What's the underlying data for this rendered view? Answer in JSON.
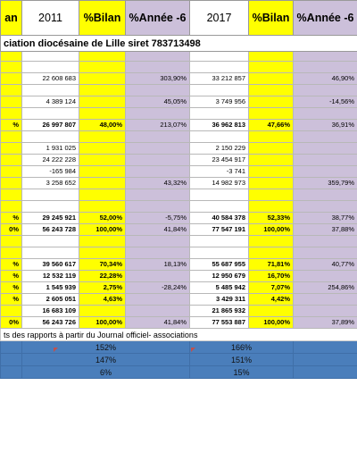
{
  "header": {
    "bilan_a": "an",
    "year_2011": "2011",
    "bilan_b": "%Bilan",
    "annee_b": "%Année -6",
    "year_2017": "2017",
    "bilan_c": "%Bilan",
    "annee_c": "%Année -6"
  },
  "org_title": "ciation diocésaine de Lille siret 783713498",
  "rows": [
    {
      "a": "",
      "b": "",
      "c": "",
      "d": "",
      "e": "",
      "f": "",
      "g": ""
    },
    {
      "a": "",
      "b": "22 608 683",
      "c": "",
      "d": "303,90%",
      "e": "33 212 857",
      "f": "",
      "g": "46,90%"
    },
    {
      "a": "",
      "b": "",
      "c": "",
      "d": "",
      "e": "",
      "f": "",
      "g": ""
    },
    {
      "a": "",
      "b": "4 389 124",
      "c": "",
      "d": "45,05%",
      "e": "3 749 956",
      "f": "",
      "g": "-14,56%"
    },
    {
      "a": "",
      "b": "",
      "c": "",
      "d": "",
      "e": "",
      "f": "",
      "g": ""
    },
    {
      "a": "%",
      "b": "26 997 807",
      "c": "48,00%",
      "d": "213,07%",
      "e": "36 962 813",
      "f": "47,66%",
      "g": "36,91%"
    },
    {
      "a": "",
      "b": "",
      "c": "",
      "d": "",
      "e": "",
      "f": "",
      "g": ""
    },
    {
      "a": "",
      "b": "1 931 025",
      "c": "",
      "d": "",
      "e": "2 150 229",
      "f": "",
      "g": ""
    },
    {
      "a": "",
      "b": "24 222 228",
      "c": "",
      "d": "",
      "e": "23 454 917",
      "f": "",
      "g": ""
    },
    {
      "a": "",
      "b": "-165 984",
      "c": "",
      "d": "",
      "e": "-3 741",
      "f": "",
      "g": ""
    },
    {
      "a": "",
      "b": "3 258 652",
      "c": "",
      "d": "43,32%",
      "e": "14 982 973",
      "f": "",
      "g": "359,79%"
    },
    {
      "a": "",
      "b": "",
      "c": "",
      "d": "",
      "e": "",
      "f": "",
      "g": ""
    },
    {
      "a": "",
      "b": "",
      "c": "",
      "d": "",
      "e": "",
      "f": "",
      "g": ""
    },
    {
      "a": "%",
      "b": "29 245 921",
      "c": "52,00%",
      "d": "-5,75%",
      "e": "40 584 378",
      "f": "52,33%",
      "g": "38,77%"
    },
    {
      "a": "0%",
      "b": "56 243 728",
      "c": "100,00%",
      "d": "41,84%",
      "e": "77 547 191",
      "f": "100,00%",
      "g": "37,88%"
    },
    {
      "a": "",
      "b": "",
      "c": "",
      "d": "",
      "e": "",
      "f": "",
      "g": ""
    },
    {
      "a": "",
      "b": "",
      "c": "",
      "d": "",
      "e": "",
      "f": "",
      "g": ""
    },
    {
      "a": "%",
      "b": "39 560 617",
      "c": "70,34%",
      "d": "18,13%",
      "e": "55 687 955",
      "f": "71,81%",
      "g": "40,77%"
    },
    {
      "a": "%",
      "b": "12 532 119",
      "c": "22,28%",
      "d": "",
      "e": "12 950 679",
      "f": "16,70%",
      "g": ""
    },
    {
      "a": "%",
      "b": "1 545 939",
      "c": "2,75%",
      "d": "-28,24%",
      "e": "5 485 942",
      "f": "7,07%",
      "g": "254,86%"
    },
    {
      "a": "%",
      "b": "2 605 051",
      "c": "4,63%",
      "d": "",
      "e": "3 429 311",
      "f": "4,42%",
      "g": ""
    },
    {
      "a": "",
      "b": "16 683 109",
      "c": "",
      "d": "",
      "e": "21 865 932",
      "f": "",
      "g": ""
    },
    {
      "a": "0%",
      "b": "56 243 726",
      "c": "100,00%",
      "d": "41,84%",
      "e": "77 553 887",
      "f": "100,00%",
      "g": "37,89%"
    }
  ],
  "footer": {
    "text": "ts des rapports à partir du Journal officiel- associations",
    "blue_rows": [
      {
        "b": "152%",
        "e": "166%"
      },
      {
        "b": "147%",
        "e": "151%"
      },
      {
        "b": "6%",
        "e": "15%"
      }
    ]
  }
}
